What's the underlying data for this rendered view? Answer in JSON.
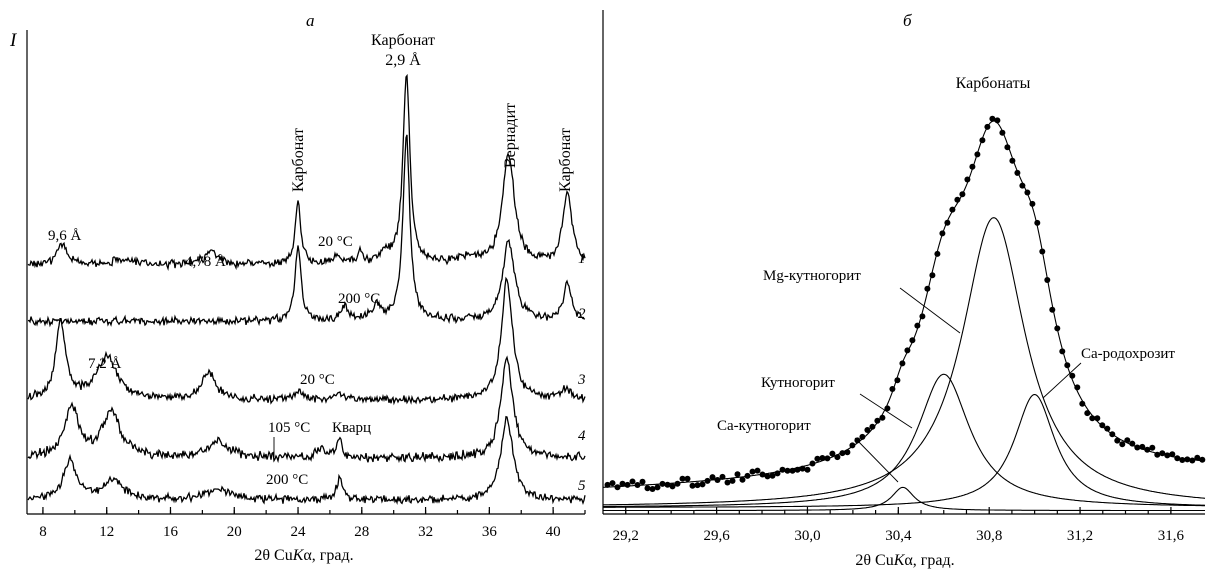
{
  "chart_data": [
    {
      "type": "line",
      "panel_label": "а",
      "ylabel": "I",
      "xlabel_pre": "2θ Cu",
      "xlabel_italic": "K",
      "xlabel_post": "α, град.",
      "xlim": [
        7,
        42
      ],
      "xticks": [
        "8",
        "12",
        "16",
        "20",
        "24",
        "28",
        "32",
        "36",
        "40"
      ],
      "series": [
        {
          "name": "1",
          "baseline": 265,
          "noise": 6,
          "peaks": [
            [
              9.2,
              20,
              0.4
            ],
            [
              13,
              6,
              0.8
            ],
            [
              18.6,
              14,
              0.5
            ],
            [
              24,
              62,
              0.22
            ],
            [
              26.5,
              8,
              0.3
            ],
            [
              27.9,
              14,
              0.2
            ],
            [
              29.5,
              10,
              0.4
            ],
            [
              30.8,
              190,
              0.26
            ],
            [
              34.5,
              6,
              0.8
            ],
            [
              37.2,
              110,
              0.45
            ],
            [
              40.9,
              70,
              0.35
            ]
          ]
        },
        {
          "name": "2",
          "baseline": 321,
          "noise": 6,
          "peaks": [
            [
              24,
              75,
              0.22
            ],
            [
              26.9,
              14,
              0.25
            ],
            [
              28.9,
              14,
              0.3
            ],
            [
              30.8,
              185,
              0.26
            ],
            [
              37.2,
              80,
              0.45
            ],
            [
              40.9,
              38,
              0.3
            ]
          ]
        },
        {
          "name": "3",
          "baseline": 400,
          "noise": 6,
          "peaks": [
            [
              9.1,
              75,
              0.38
            ],
            [
              12,
              42,
              0.8
            ],
            [
              18.4,
              28,
              0.5
            ],
            [
              24,
              8,
              0.3
            ],
            [
              26.6,
              8,
              0.25
            ],
            [
              37.1,
              120,
              0.42
            ],
            [
              40.8,
              10,
              0.4
            ]
          ]
        },
        {
          "name": "4",
          "baseline": 458,
          "noise": 7,
          "peaks": [
            [
              9.8,
              50,
              0.55
            ],
            [
              12.3,
              45,
              0.7
            ],
            [
              19,
              16,
              0.8
            ],
            [
              25.5,
              8,
              0.4
            ],
            [
              26.6,
              18,
              0.2
            ],
            [
              37.1,
              100,
              0.45
            ]
          ]
        },
        {
          "name": "5",
          "baseline": 500,
          "noise": 6,
          "peaks": [
            [
              9.7,
              40,
              0.5
            ],
            [
              12.4,
              20,
              0.7
            ],
            [
              19,
              10,
              0.9
            ],
            [
              26.6,
              22,
              0.2
            ],
            [
              37.1,
              82,
              0.45
            ]
          ]
        }
      ],
      "annotations": {
        "a_9_6": "9,6 Å",
        "a_4_78": "4,78 Å",
        "a_7_2": "7,2 Å",
        "carb_24": "Карбонат",
        "carb_top_1": "Карбонат",
        "carb_top_2": "2,9 Å",
        "vernadite": "Вернадит",
        "carb_41": "Карбонат",
        "t1": "20 °C",
        "t2": "200 °C",
        "t3": "20 °C",
        "t4": "105 °C",
        "quartz": "Кварц",
        "t5": "200 °C"
      }
    },
    {
      "type": "scatter",
      "panel_label": "б",
      "title": "Карбонаты",
      "xlabel_pre": "2θ Cu",
      "xlabel_italic": "K",
      "xlabel_post": "α, град.",
      "xlim": [
        29.1,
        31.75
      ],
      "xticks": [
        "29,2",
        "29,6",
        "30,0",
        "30,4",
        "30,8",
        "31,2",
        "31,6"
      ],
      "components": [
        {
          "name": "Mg-кутногорит",
          "center": 30.82,
          "height": 100,
          "width": 0.17
        },
        {
          "name": "Кутногорит",
          "center": 30.6,
          "height": 46,
          "width": 0.14
        },
        {
          "name": "Са-родохрозит",
          "center": 31.0,
          "height": 39,
          "width": 0.11
        },
        {
          "name": "Са-кутногорит",
          "center": 30.42,
          "height": 8,
          "width": 0.06
        }
      ]
    }
  ]
}
